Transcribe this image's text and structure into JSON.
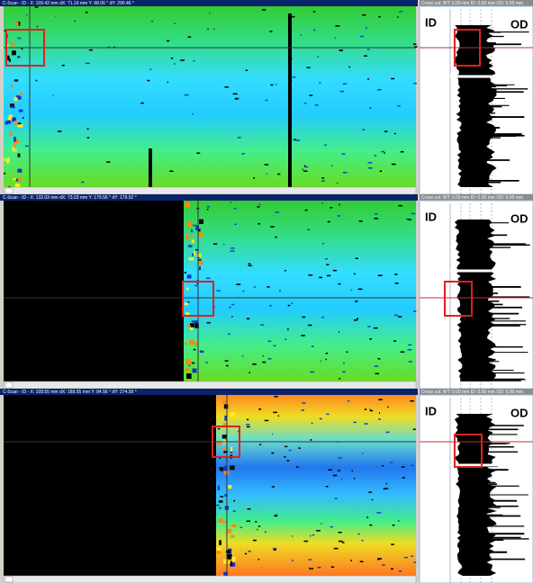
{
  "panels": [
    {
      "scan_header": "C-Scan - ID - X: 109.42 mm dX: 71.19 mm Y: 68.06 ° dY: 290.46 °",
      "profile_header": "Cross cut: WT: 0.00 mm ID: 0.00 mm OD: 0.00 mm",
      "id_label": "ID",
      "od_label": "OD"
    },
    {
      "scan_header": "C-Scan - ID - X: 132.03 mm dX: 73.03 mm Y: 179.56 ° dY: 179.52 °",
      "profile_header": "Cross cut: WT: 0.00 mm ID: 0.00 mm OD: 0.00 mm",
      "id_label": "ID",
      "od_label": "OD"
    },
    {
      "scan_header": "C-Scan - ID - X: 109.55 mm dX: 189.55 mm Y: 84.56 ° dY: 274.59 °",
      "profile_header": "Cross cut: WT: 0.00 mm ID: 0.00 mm OD: 0.00 mm",
      "id_label": "ID",
      "od_label": "OD"
    }
  ]
}
